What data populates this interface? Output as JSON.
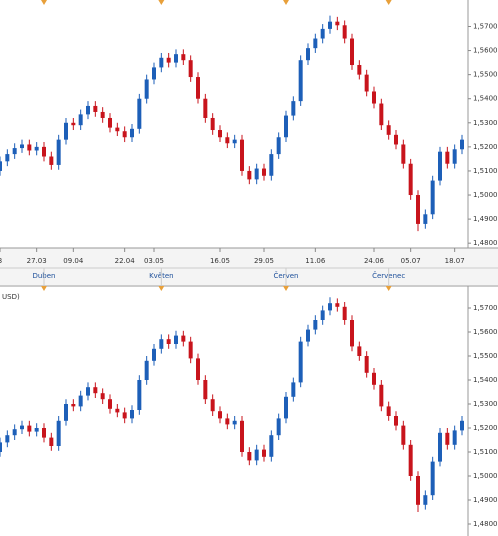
{
  "chart_data": [
    {
      "type": "candlestick",
      "categories": [
        "3",
        null,
        null,
        null,
        null,
        "27.03",
        null,
        null,
        null,
        null,
        "09.04",
        null,
        null,
        null,
        null,
        null,
        null,
        "22.04",
        null,
        null,
        null,
        "03.05",
        null,
        null,
        null,
        null,
        null,
        null,
        null,
        null,
        "16.05",
        null,
        null,
        null,
        null,
        null,
        "29.05",
        null,
        null,
        null,
        null,
        null,
        null,
        "11.06",
        null,
        null,
        null,
        null,
        null,
        null,
        null,
        "24.06",
        null,
        null,
        null,
        null,
        "05.07",
        null,
        null,
        null,
        null,
        null,
        "18.07",
        null
      ],
      "months": [
        null,
        null,
        null,
        null,
        null,
        null,
        "Duben",
        null,
        null,
        null,
        null,
        null,
        null,
        null,
        null,
        null,
        null,
        null,
        null,
        null,
        null,
        null,
        "Květen",
        null,
        null,
        null,
        null,
        null,
        null,
        null,
        null,
        null,
        null,
        null,
        null,
        null,
        null,
        null,
        null,
        "Červen",
        null,
        null,
        null,
        null,
        null,
        null,
        null,
        null,
        null,
        null,
        null,
        null,
        null,
        "Červenec",
        null,
        null,
        null,
        null,
        null,
        null,
        null,
        null,
        null,
        null
      ],
      "open": [
        1.51,
        1.514,
        1.517,
        1.5195,
        1.521,
        1.5185,
        1.52,
        1.516,
        1.5125,
        1.523,
        1.53,
        1.529,
        1.5335,
        1.537,
        1.5345,
        1.532,
        1.528,
        1.5265,
        1.524,
        1.5275,
        1.54,
        1.548,
        1.553,
        1.557,
        1.555,
        1.5585,
        1.556,
        1.549,
        1.54,
        1.532,
        1.527,
        1.524,
        1.5215,
        1.523,
        1.51,
        1.5065,
        1.511,
        1.508,
        1.517,
        1.524,
        1.533,
        1.539,
        1.556,
        1.561,
        1.565,
        1.569,
        1.572,
        1.5705,
        1.565,
        1.554,
        1.55,
        1.543,
        1.538,
        1.529,
        1.525,
        1.521,
        1.513,
        1.5,
        1.488,
        1.492,
        1.506,
        1.518,
        1.513,
        1.519
      ],
      "high": [
        1.516,
        1.519,
        1.5215,
        1.523,
        1.523,
        1.522,
        1.522,
        1.518,
        1.525,
        1.532,
        1.532,
        1.5355,
        1.539,
        1.539,
        1.5365,
        1.534,
        1.53,
        1.5285,
        1.5295,
        1.542,
        1.55,
        1.555,
        1.559,
        1.559,
        1.5605,
        1.5605,
        1.558,
        1.551,
        1.542,
        1.534,
        1.529,
        1.526,
        1.525,
        1.525,
        1.512,
        1.513,
        1.513,
        1.519,
        1.526,
        1.535,
        1.541,
        1.558,
        1.563,
        1.567,
        1.571,
        1.5745,
        1.574,
        1.5725,
        1.567,
        1.556,
        1.552,
        1.545,
        1.54,
        1.531,
        1.527,
        1.523,
        1.515,
        1.502,
        1.494,
        1.508,
        1.52,
        1.52,
        1.521,
        1.525
      ],
      "low": [
        1.508,
        1.512,
        1.515,
        1.5175,
        1.5165,
        1.5165,
        1.514,
        1.5105,
        1.5105,
        1.521,
        1.527,
        1.527,
        1.5315,
        1.5325,
        1.53,
        1.526,
        1.5245,
        1.522,
        1.522,
        1.5255,
        1.538,
        1.546,
        1.551,
        1.553,
        1.553,
        1.554,
        1.547,
        1.538,
        1.53,
        1.525,
        1.522,
        1.5195,
        1.5195,
        1.508,
        1.5045,
        1.5045,
        1.506,
        1.506,
        1.515,
        1.522,
        1.531,
        1.537,
        1.554,
        1.559,
        1.563,
        1.567,
        1.5685,
        1.563,
        1.552,
        1.548,
        1.541,
        1.536,
        1.527,
        1.523,
        1.519,
        1.511,
        1.498,
        1.485,
        1.486,
        1.49,
        1.504,
        1.511,
        1.511,
        1.517
      ],
      "close": [
        1.514,
        1.517,
        1.5195,
        1.521,
        1.5185,
        1.52,
        1.516,
        1.5125,
        1.523,
        1.53,
        1.529,
        1.5335,
        1.537,
        1.5345,
        1.532,
        1.528,
        1.5265,
        1.524,
        1.5275,
        1.54,
        1.548,
        1.553,
        1.557,
        1.555,
        1.5585,
        1.556,
        1.549,
        1.54,
        1.532,
        1.527,
        1.524,
        1.5215,
        1.523,
        1.51,
        1.5065,
        1.511,
        1.508,
        1.517,
        1.524,
        1.533,
        1.539,
        1.556,
        1.561,
        1.565,
        1.569,
        1.572,
        1.5705,
        1.565,
        1.554,
        1.55,
        1.543,
        1.538,
        1.529,
        1.525,
        1.521,
        1.513,
        1.5,
        1.488,
        1.492,
        1.506,
        1.518,
        1.513,
        1.519,
        1.523
      ],
      "up_color": "#1d5fb8",
      "down_color": "#c8141c",
      "ylim": [
        1.478,
        1.581
      ],
      "yticks": [
        {
          "value": 1.57,
          "label": "1,5700"
        },
        {
          "value": 1.56,
          "label": "1,5600"
        },
        {
          "value": 1.55,
          "label": "1,5500"
        },
        {
          "value": 1.54,
          "label": "1,5400"
        },
        {
          "value": 1.53,
          "label": "1,5300"
        },
        {
          "value": 1.52,
          "label": "1,5200"
        },
        {
          "value": 1.51,
          "label": "1,5100"
        },
        {
          "value": 1.5,
          "label": "1,5000"
        },
        {
          "value": 1.49,
          "label": "1,4900"
        },
        {
          "value": 1.48,
          "label": "1,4800"
        }
      ]
    },
    {
      "type": "candlestick",
      "title": "USD)",
      "open": [
        1.51,
        1.514,
        1.517,
        1.5195,
        1.521,
        1.5185,
        1.52,
        1.516,
        1.5125,
        1.523,
        1.53,
        1.529,
        1.5335,
        1.537,
        1.5345,
        1.532,
        1.528,
        1.5265,
        1.524,
        1.5275,
        1.54,
        1.548,
        1.553,
        1.557,
        1.555,
        1.5585,
        1.556,
        1.549,
        1.54,
        1.532,
        1.527,
        1.524,
        1.5215,
        1.523,
        1.51,
        1.5065,
        1.511,
        1.508,
        1.517,
        1.524,
        1.533,
        1.539,
        1.556,
        1.561,
        1.565,
        1.569,
        1.572,
        1.5705,
        1.565,
        1.554,
        1.55,
        1.543,
        1.538,
        1.529,
        1.525,
        1.521,
        1.513,
        1.5,
        1.488,
        1.492,
        1.506,
        1.518,
        1.513,
        1.519
      ],
      "high": [
        1.516,
        1.519,
        1.5215,
        1.523,
        1.523,
        1.522,
        1.522,
        1.518,
        1.525,
        1.532,
        1.532,
        1.5355,
        1.539,
        1.539,
        1.5365,
        1.534,
        1.53,
        1.5285,
        1.5295,
        1.542,
        1.55,
        1.555,
        1.559,
        1.559,
        1.5605,
        1.5605,
        1.558,
        1.551,
        1.542,
        1.534,
        1.529,
        1.526,
        1.525,
        1.525,
        1.512,
        1.513,
        1.513,
        1.519,
        1.526,
        1.535,
        1.541,
        1.558,
        1.563,
        1.567,
        1.571,
        1.5745,
        1.574,
        1.5725,
        1.567,
        1.556,
        1.552,
        1.545,
        1.54,
        1.531,
        1.527,
        1.523,
        1.515,
        1.502,
        1.494,
        1.508,
        1.52,
        1.52,
        1.521,
        1.525
      ],
      "low": [
        1.508,
        1.512,
        1.515,
        1.5175,
        1.5165,
        1.5165,
        1.514,
        1.5105,
        1.5105,
        1.521,
        1.527,
        1.527,
        1.5315,
        1.5325,
        1.53,
        1.526,
        1.5245,
        1.522,
        1.522,
        1.5255,
        1.538,
        1.546,
        1.551,
        1.553,
        1.553,
        1.554,
        1.547,
        1.538,
        1.53,
        1.525,
        1.522,
        1.5195,
        1.5195,
        1.508,
        1.5045,
        1.5045,
        1.506,
        1.506,
        1.515,
        1.522,
        1.531,
        1.537,
        1.554,
        1.559,
        1.563,
        1.567,
        1.5685,
        1.563,
        1.552,
        1.548,
        1.541,
        1.536,
        1.527,
        1.523,
        1.519,
        1.511,
        1.498,
        1.485,
        1.486,
        1.49,
        1.504,
        1.511,
        1.511,
        1.517
      ],
      "close": [
        1.514,
        1.517,
        1.5195,
        1.521,
        1.5185,
        1.52,
        1.516,
        1.5125,
        1.523,
        1.53,
        1.529,
        1.5335,
        1.537,
        1.5345,
        1.532,
        1.528,
        1.5265,
        1.524,
        1.5275,
        1.54,
        1.548,
        1.553,
        1.557,
        1.555,
        1.5585,
        1.556,
        1.549,
        1.54,
        1.532,
        1.527,
        1.524,
        1.5215,
        1.523,
        1.51,
        1.5065,
        1.511,
        1.508,
        1.517,
        1.524,
        1.533,
        1.539,
        1.556,
        1.561,
        1.565,
        1.569,
        1.572,
        1.5705,
        1.565,
        1.554,
        1.55,
        1.543,
        1.538,
        1.529,
        1.525,
        1.521,
        1.513,
        1.5,
        1.488,
        1.492,
        1.506,
        1.518,
        1.513,
        1.519,
        1.523
      ],
      "up_color": "#1d5fb8",
      "down_color": "#c8141c",
      "ylim": [
        1.475,
        1.5775
      ],
      "yticks": [
        {
          "value": 1.57,
          "label": "1,5700"
        },
        {
          "value": 1.56,
          "label": "1,5600"
        },
        {
          "value": 1.55,
          "label": "1,5500"
        },
        {
          "value": 1.54,
          "label": "1,5400"
        },
        {
          "value": 1.53,
          "label": "1,5300"
        },
        {
          "value": 1.52,
          "label": "1,5200"
        },
        {
          "value": 1.51,
          "label": "1,5100"
        },
        {
          "value": 1.5,
          "label": "1,5000"
        },
        {
          "value": 1.49,
          "label": "1,4900"
        },
        {
          "value": 1.48,
          "label": "1,4800"
        }
      ]
    }
  ]
}
